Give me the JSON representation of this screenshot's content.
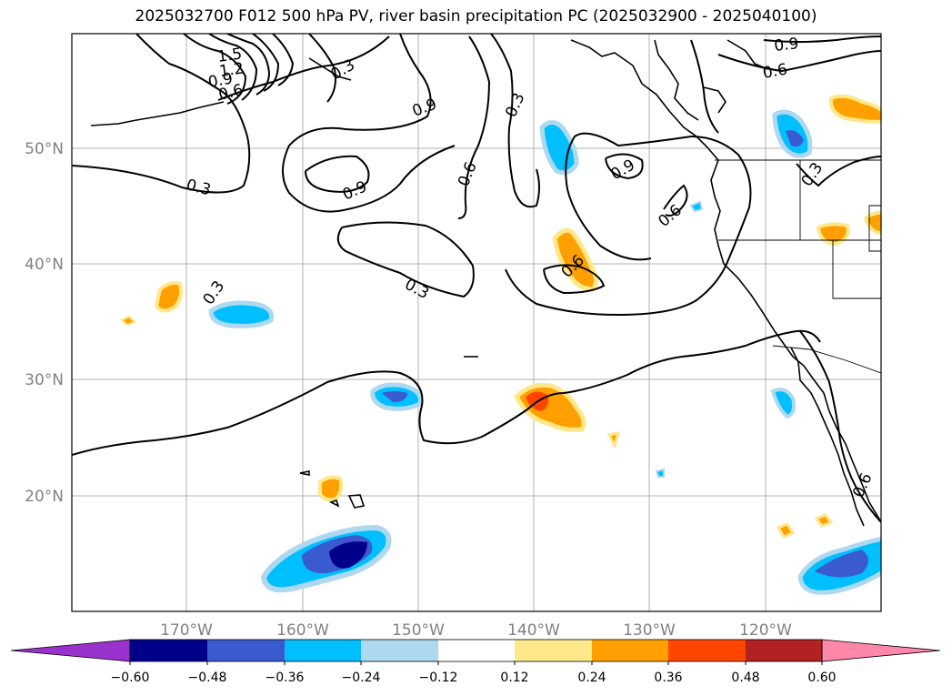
{
  "title": "2025032700 F012 500 hPa PV, river basin precipitation PC (2025032900 - 2025040100)",
  "lon_ticks": [
    "170°W",
    "160°W",
    "150°W",
    "140°W",
    "130°W",
    "120°W"
  ],
  "lat_ticks": [
    "50°N",
    "40°N",
    "30°N",
    "20°N"
  ],
  "contour_labels": [
    "1.5",
    "1.2",
    "0.9",
    "0.6",
    "0.3",
    "0.9",
    "0.9",
    "0.6",
    "0.3",
    "0.9",
    "0.6",
    "0.9",
    "0.6",
    "0.3",
    "0.6",
    "0.3",
    "0.3",
    "0.3",
    "0.6"
  ],
  "colorbar": {
    "colors": [
      "#9932cc",
      "#00008b",
      "#3a5bcf",
      "#00bfff",
      "#add8f0",
      "#ffffff",
      "#ffe88a",
      "#ffa000",
      "#ff4500",
      "#b22222",
      "#ff88aa"
    ],
    "tick_labels": [
      "−0.60",
      "−0.48",
      "−0.36",
      "−0.24",
      "−0.12",
      "0.12",
      "0.24",
      "0.36",
      "0.48",
      "0.60"
    ]
  },
  "colors": {
    "neg_light": "#add8f0",
    "neg_mid": "#00bfff",
    "neg_strong": "#3a5bcf",
    "neg_max": "#00008b",
    "pos_light": "#ffe88a",
    "pos_mid": "#ffa000",
    "pos_strong": "#ff4500"
  }
}
